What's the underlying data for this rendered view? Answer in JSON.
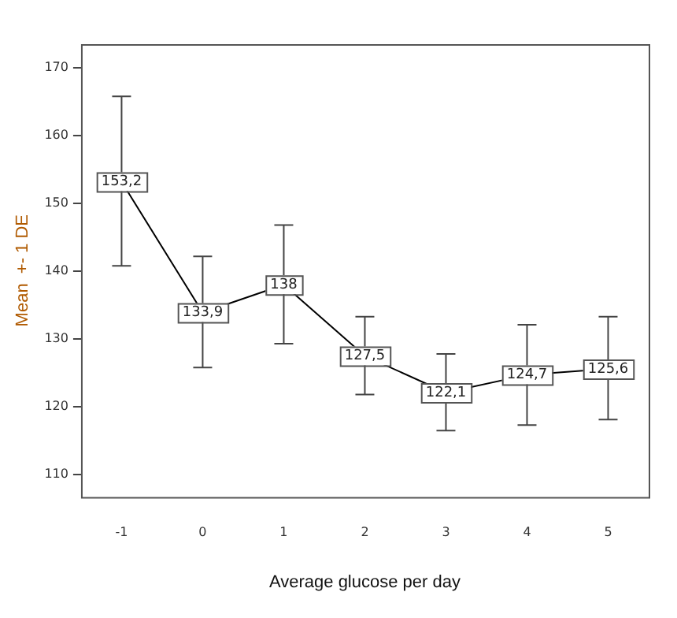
{
  "chart_data": {
    "type": "line",
    "xlabel": "Average glucose per day",
    "ylabel": "Mean  +- 1 DE",
    "categories": [
      "-1",
      "0",
      "1",
      "2",
      "3",
      "4",
      "5"
    ],
    "series": [
      {
        "color": "#000000",
        "values": [
          153.2,
          133.9,
          138,
          127.5,
          122.1,
          124.7,
          125.6
        ],
        "errors": [
          [
            140.8,
            165.8
          ],
          [
            125.8,
            142.2
          ],
          [
            129.3,
            146.8
          ],
          [
            121.8,
            133.3
          ],
          [
            116.5,
            127.8
          ],
          [
            117.3,
            132.1
          ],
          [
            118.1,
            133.3
          ]
        ],
        "value_labels": [
          "153,2",
          "133,9",
          "138",
          "127,5",
          "122,1",
          "124,7",
          "125,6"
        ]
      }
    ],
    "ylim": [
      106.7,
      173.5
    ],
    "yticks": [
      110,
      120,
      130,
      140,
      150,
      160,
      170
    ],
    "grid": false,
    "legend": false,
    "marker": "square",
    "line_style": "solid"
  }
}
